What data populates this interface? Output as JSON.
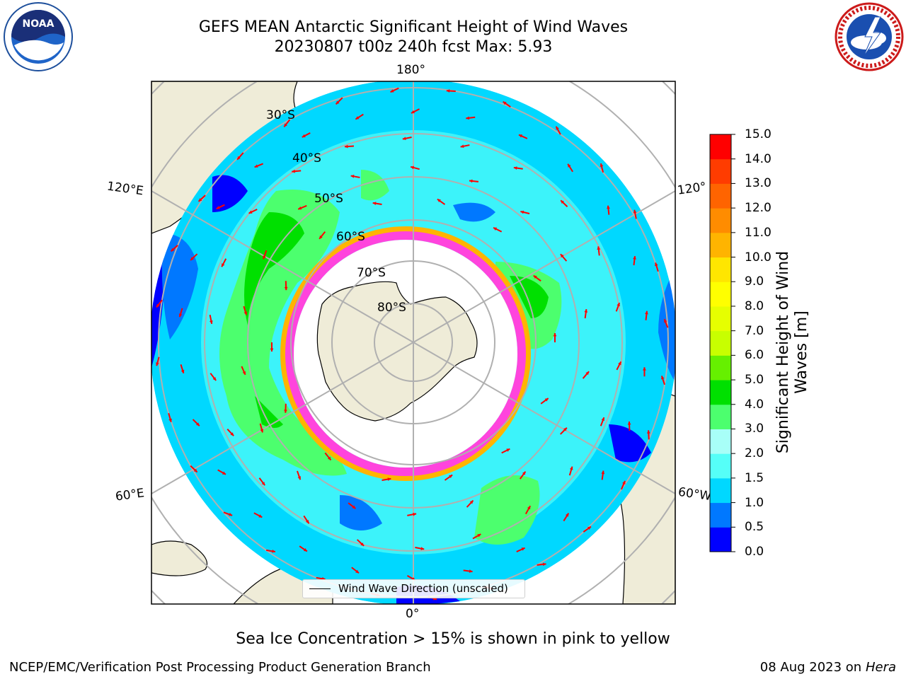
{
  "header": {
    "title": "GEFS MEAN Antarctic Significant Height of Wind Waves",
    "subtitle": "20230807 t00z 240h fcst   Max: 5.93"
  },
  "logos": {
    "left": {
      "text": "NOAA",
      "icon": "noaa-logo-icon"
    },
    "right": {
      "icon": "nws-logo-icon"
    }
  },
  "map": {
    "longitude_labels": {
      "top": "180°",
      "bottom": "0°",
      "upper_left": "120°E",
      "upper_right": "120°",
      "lower_left": "60°E",
      "lower_right": "60°W"
    },
    "latitude_labels": [
      "30°S",
      "40°S",
      "50°S",
      "60°S",
      "70°S",
      "80°S"
    ],
    "legend": "Wind Wave Direction (unscaled)",
    "colors": {
      "land": "#efecd8",
      "ice": "#ffffff",
      "ice_edge": "#ff44dd",
      "arrow": "#ff0000",
      "grid": "#b0b0b0"
    }
  },
  "colorbar": {
    "label": "Significant Height of Wind Waves [m]",
    "ticks": [
      "0.0",
      "0.5",
      "1.0",
      "1.5",
      "2.0",
      "3.0",
      "4.0",
      "5.0",
      "6.0",
      "7.0",
      "8.0",
      "9.0",
      "10.0",
      "11.0",
      "12.0",
      "13.0",
      "14.0",
      "15.0"
    ],
    "colors": [
      "#0000ff",
      "#0078ff",
      "#00d8ff",
      "#55fff8",
      "#a8fff8",
      "#4cff6e",
      "#00e000",
      "#66f000",
      "#c8ff00",
      "#e6ff00",
      "#ffff00",
      "#ffe600",
      "#ffb400",
      "#ff8c00",
      "#ff6400",
      "#ff3c00",
      "#ff0000"
    ]
  },
  "footer": {
    "note": "Sea Ice Concentration > 15% is shown in pink to yellow",
    "credit": "NCEP/EMC/Verification Post Processing Product Generation Branch",
    "date": "08 Aug 2023 on",
    "host": "Hera"
  }
}
